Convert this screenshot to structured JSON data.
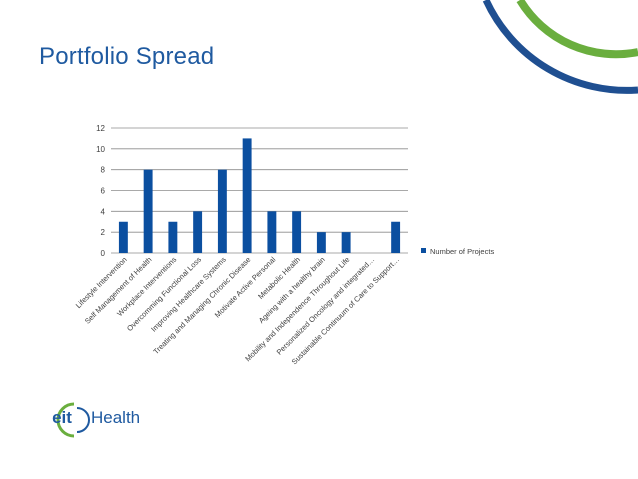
{
  "slide": {
    "title": "Portfolio Spread"
  },
  "colors": {
    "title": "#1f5aa0",
    "bar": "#0b4fa0",
    "arc_blue": "#1f4f91",
    "arc_green": "#6aae3e",
    "grid": "#8c8c8c",
    "text": "#404040"
  },
  "logo": {
    "mark": "eit",
    "wordmark": "Health"
  },
  "chart_data": {
    "type": "bar",
    "categories": [
      "Lifestyle Intervention",
      "Self Management of Health",
      "Workplace Interventions",
      "Overcomming Functional Loss",
      "Improving Healthcare Systems",
      "Treating and Managing Chronic Disease",
      "Motivate Active Personal",
      "Metabolic Health",
      "Ageing with a healthy brain",
      "Mobility and Independence Throughout Life",
      "Personalized Oncology and integrated…",
      "Sustainable Continuum of Care to Support…"
    ],
    "series": [
      {
        "name": "Number of Projects",
        "values": [
          3,
          8,
          3,
          4,
          8,
          11,
          4,
          4,
          2,
          2,
          0,
          3
        ]
      }
    ],
    "ylim": [
      0,
      12
    ],
    "yticks": [
      "0",
      "2",
      "4",
      "6",
      "8",
      "10",
      "12"
    ],
    "grid": true,
    "legend": "right"
  }
}
